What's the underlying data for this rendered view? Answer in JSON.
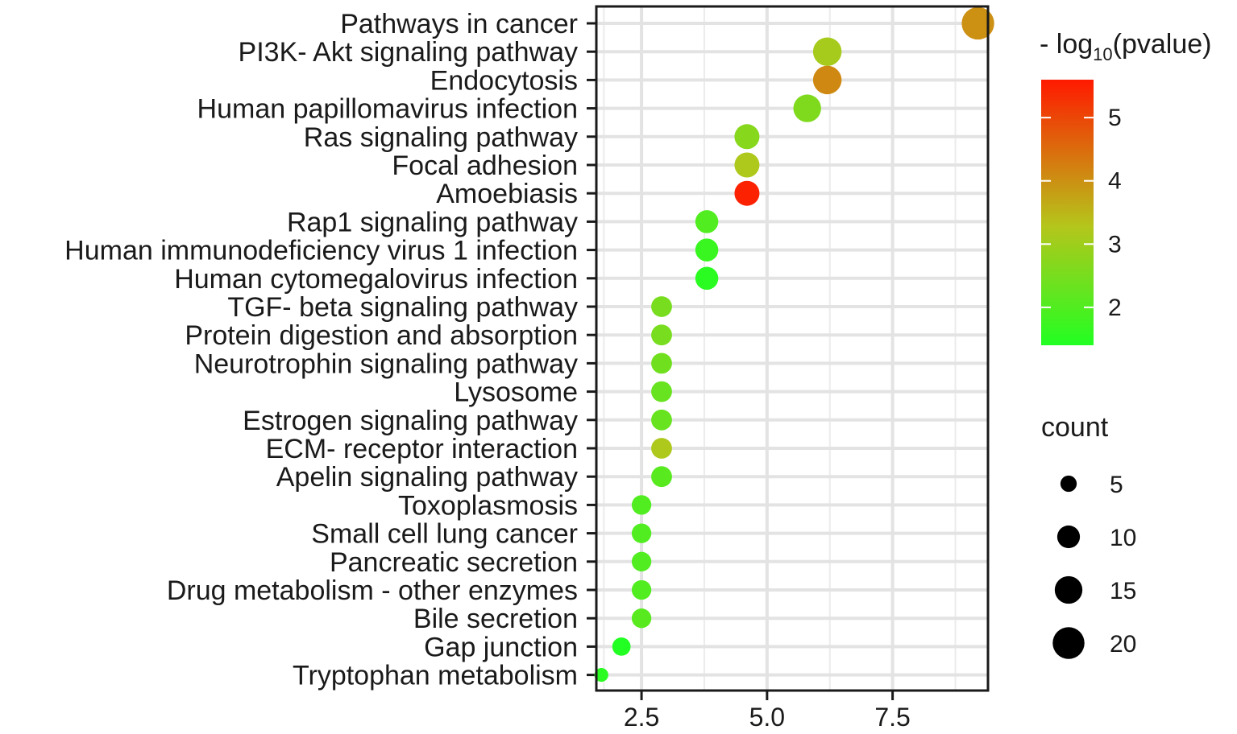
{
  "chart_data": {
    "type": "scatter",
    "subtype": "bubble",
    "title": "",
    "xlabel": "",
    "ylabel": "",
    "xlim": [
      1.6,
      9.4
    ],
    "x_ticks": [
      2.5,
      5.0,
      7.5
    ],
    "x_tick_labels": [
      "2.5",
      "5.0",
      "7.5"
    ],
    "grid": true,
    "points": [
      {
        "term": "Pathways in cancer",
        "x": 9.2,
        "count": 22,
        "neglog10p": 4.0
      },
      {
        "term": "PI3K- Akt signaling pathway",
        "x": 6.2,
        "count": 17,
        "neglog10p": 3.1
      },
      {
        "term": "Endocytosis",
        "x": 6.2,
        "count": 17,
        "neglog10p": 4.1
      },
      {
        "term": "Human papillomavirus infection",
        "x": 5.8,
        "count": 16,
        "neglog10p": 2.6
      },
      {
        "term": "Ras signaling pathway",
        "x": 4.6,
        "count": 13,
        "neglog10p": 2.7
      },
      {
        "term": "Focal adhesion",
        "x": 4.6,
        "count": 13,
        "neglog10p": 3.2
      },
      {
        "term": "Amoebiasis",
        "x": 4.6,
        "count": 13,
        "neglog10p": 5.5
      },
      {
        "term": "Rap1 signaling pathway",
        "x": 3.8,
        "count": 11,
        "neglog10p": 2.0
      },
      {
        "term": "Human immunodeficiency virus 1 infection",
        "x": 3.8,
        "count": 11,
        "neglog10p": 1.7
      },
      {
        "term": "Human cytomegalovirus infection",
        "x": 3.8,
        "count": 11,
        "neglog10p": 1.5
      },
      {
        "term": "TGF- beta signaling pathway",
        "x": 2.9,
        "count": 9,
        "neglog10p": 2.5
      },
      {
        "term": "Protein digestion and absorption",
        "x": 2.9,
        "count": 9,
        "neglog10p": 2.5
      },
      {
        "term": "Neurotrophin signaling pathway",
        "x": 2.9,
        "count": 9,
        "neglog10p": 2.4
      },
      {
        "term": "Lysosome",
        "x": 2.9,
        "count": 9,
        "neglog10p": 2.3
      },
      {
        "term": "Estrogen signaling pathway",
        "x": 2.9,
        "count": 9,
        "neglog10p": 2.3
      },
      {
        "term": "ECM- receptor interaction",
        "x": 2.9,
        "count": 9,
        "neglog10p": 3.2
      },
      {
        "term": "Apelin signaling pathway",
        "x": 2.9,
        "count": 9,
        "neglog10p": 2.1
      },
      {
        "term": "Toxoplasmosis",
        "x": 2.5,
        "count": 8,
        "neglog10p": 2.0
      },
      {
        "term": "Small cell lung cancer",
        "x": 2.5,
        "count": 8,
        "neglog10p": 2.0
      },
      {
        "term": "Pancreatic secretion",
        "x": 2.5,
        "count": 8,
        "neglog10p": 2.0
      },
      {
        "term": "Drug metabolism -  other enzymes",
        "x": 2.5,
        "count": 8,
        "neglog10p": 2.0
      },
      {
        "term": "Bile secretion",
        "x": 2.5,
        "count": 8,
        "neglog10p": 2.1
      },
      {
        "term": "Gap junction",
        "x": 2.1,
        "count": 7,
        "neglog10p": 1.4
      },
      {
        "term": "Tryptophan metabolism",
        "x": 1.7,
        "count": 4,
        "neglog10p": 1.5
      }
    ],
    "color_legend": {
      "title_prefix": "- log",
      "title_subscript": "10",
      "title_suffix": "(pvalue)",
      "range": [
        1.4,
        5.6
      ],
      "ticks": [
        2,
        3,
        4,
        5
      ],
      "tick_labels": [
        "2",
        "3",
        "4",
        "5"
      ],
      "low_color": "#22ff22",
      "mid_color": "#b5c51b",
      "high_color": "#ff1a00"
    },
    "size_legend": {
      "title": "count",
      "values": [
        5,
        10,
        15,
        20
      ],
      "labels": [
        "5",
        "10",
        "15",
        "20"
      ]
    }
  }
}
